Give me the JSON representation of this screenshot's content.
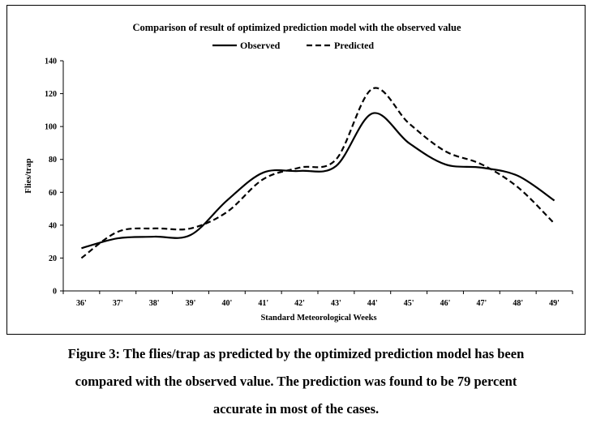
{
  "chart_data": {
    "type": "line",
    "title": "Comparison of result of optimized prediction model with the observed value",
    "xlabel": "Standard Meteorological Weeks",
    "ylabel": "Flies/trap",
    "categories": [
      "36'",
      "37'",
      "38'",
      "39'",
      "40'",
      "41'",
      "42'",
      "43'",
      "44'",
      "45'",
      "46'",
      "47'",
      "48'",
      "49'"
    ],
    "ylim": [
      0,
      140
    ],
    "yticks": [
      0,
      20,
      40,
      60,
      80,
      100,
      120,
      140
    ],
    "grid": false,
    "legend_position": "top",
    "series": [
      {
        "name": "Observed",
        "style": "solid",
        "color": "#000000",
        "values": [
          26,
          32,
          33,
          34,
          55,
          72,
          73,
          76,
          108,
          90,
          77,
          75,
          70,
          55
        ]
      },
      {
        "name": "Predicted",
        "style": "dashed",
        "color": "#000000",
        "values": [
          20,
          36,
          38,
          38,
          48,
          68,
          75,
          80,
          123,
          102,
          85,
          77,
          63,
          41
        ]
      }
    ]
  },
  "caption": {
    "line1": "Figure 3: The flies/trap as predicted by the optimized prediction model has been",
    "line2": "compared with the observed value. The prediction was found to be 79 percent",
    "line3": "accurate in most of the cases."
  }
}
